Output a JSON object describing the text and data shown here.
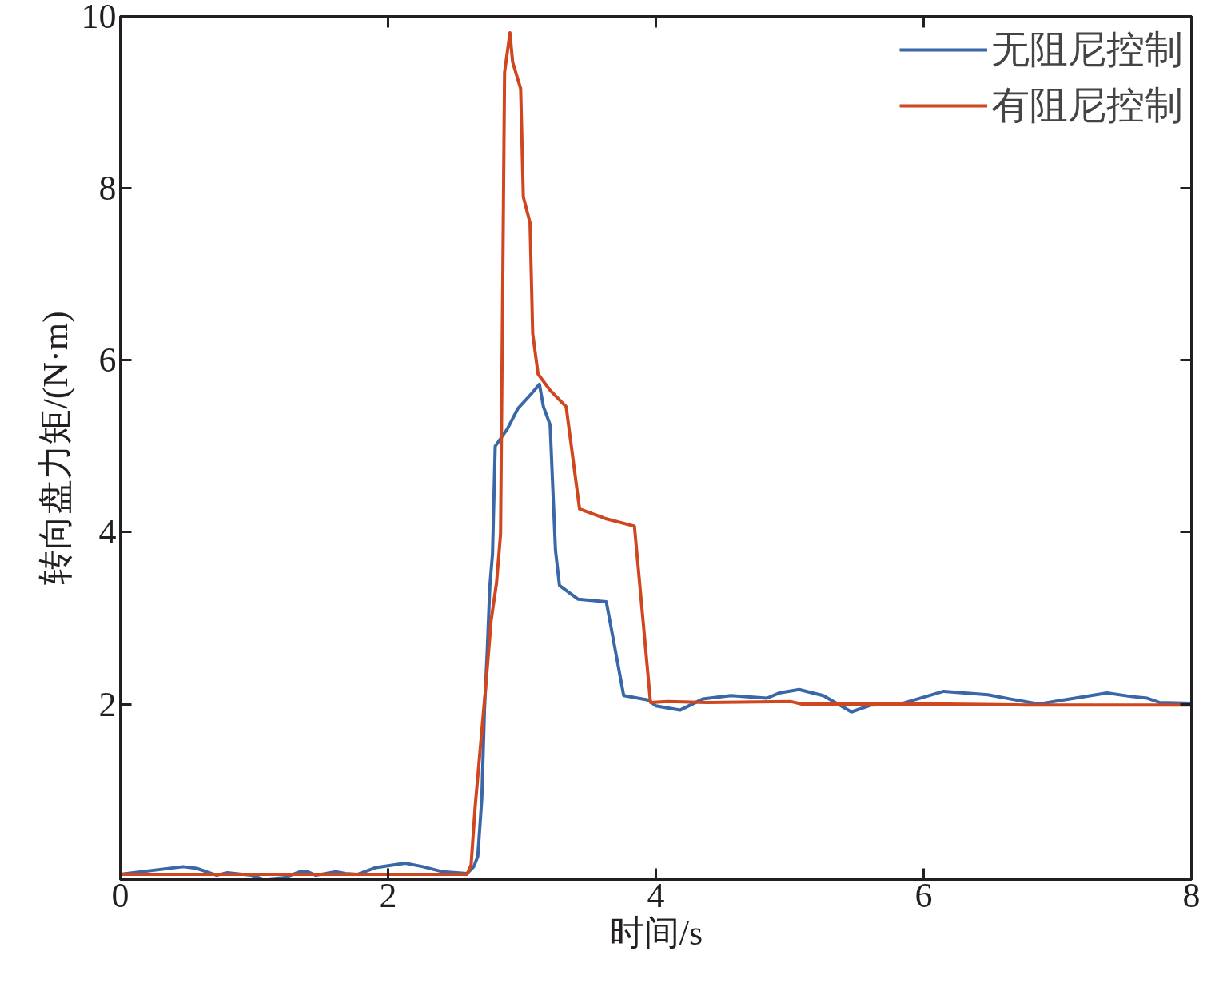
{
  "chart_data": {
    "type": "line",
    "xlabel": "时间/s",
    "ylabel": "转向盘力矩/(N·m)",
    "xlim": [
      0,
      8
    ],
    "ylim": [
      -0.04,
      10
    ],
    "xticks": [
      0,
      2,
      4,
      6,
      8
    ],
    "yticks": [
      2,
      4,
      6,
      8,
      10
    ],
    "grid": false,
    "legend": "top right",
    "line_style": "solid",
    "series": [
      {
        "name": "无阻尼控制",
        "color": "#3a67a8",
        "x": [
          0,
          0.47,
          0.57,
          0.72,
          0.8,
          0.98,
          1.07,
          1.22,
          1.34,
          1.4,
          1.46,
          1.61,
          1.68,
          1.77,
          1.91,
          2.13,
          2.26,
          2.41,
          2.59,
          2.64,
          2.67,
          2.7,
          2.72,
          2.74,
          2.76,
          2.78,
          2.8,
          2.89,
          2.97,
          3.07,
          3.13,
          3.16,
          3.21,
          3.25,
          3.28,
          3.42,
          3.63,
          3.76,
          3.94,
          4.0,
          4.18,
          4.35,
          4.56,
          4.83,
          4.92,
          5.07,
          5.25,
          5.46,
          5.61,
          5.82,
          6.15,
          6.48,
          6.65,
          6.86,
          7.01,
          7.37,
          7.55,
          7.67,
          7.76,
          8.0
        ],
        "values": [
          0.02,
          0.11,
          0.09,
          0.01,
          0.04,
          0.01,
          -0.04,
          -0.02,
          0.05,
          0.05,
          0.01,
          0.05,
          0.03,
          0.02,
          0.1,
          0.15,
          0.11,
          0.05,
          0.03,
          0.11,
          0.23,
          0.9,
          1.94,
          2.6,
          3.37,
          3.75,
          5.0,
          5.2,
          5.44,
          5.61,
          5.72,
          5.46,
          5.25,
          3.79,
          3.38,
          3.22,
          3.19,
          2.1,
          2.05,
          1.98,
          1.93,
          2.06,
          2.1,
          2.07,
          2.13,
          2.17,
          2.1,
          1.91,
          1.99,
          2.0,
          2.15,
          2.11,
          2.06,
          2.0,
          2.04,
          2.13,
          2.09,
          2.07,
          2.02,
          2.01
        ]
      },
      {
        "name": "有阻尼控制",
        "color": "#d0461f",
        "x": [
          0,
          2.59,
          2.62,
          2.65,
          2.73,
          2.77,
          2.81,
          2.84,
          2.87,
          2.91,
          2.93,
          2.99,
          3.01,
          3.06,
          3.08,
          3.12,
          3.21,
          3.33,
          3.43,
          3.62,
          3.84,
          3.96,
          4.09,
          4.38,
          5.01,
          5.09,
          6.18,
          6.77,
          8.0
        ],
        "values": [
          0.02,
          0.02,
          0.13,
          0.8,
          2.22,
          2.98,
          3.41,
          3.98,
          9.35,
          9.81,
          9.47,
          9.16,
          7.9,
          7.6,
          6.31,
          5.84,
          5.65,
          5.46,
          4.27,
          4.16,
          4.07,
          2.02,
          2.03,
          2.02,
          2.03,
          2.0,
          2.0,
          1.99,
          1.99
        ]
      }
    ]
  }
}
